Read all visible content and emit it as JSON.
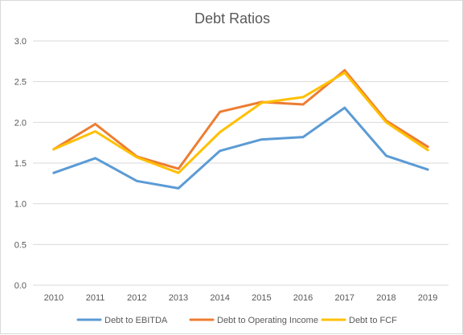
{
  "chart_data": {
    "type": "line",
    "title": "Debt Ratios",
    "xlabel": "",
    "ylabel": "",
    "categories": [
      "2010",
      "2011",
      "2012",
      "2013",
      "2014",
      "2015",
      "2016",
      "2017",
      "2018",
      "2019"
    ],
    "y_ticks": [
      "0.0",
      "0.5",
      "1.0",
      "1.5",
      "2.0",
      "2.5",
      "3.0"
    ],
    "ylim": [
      0,
      3.0
    ],
    "grid": true,
    "legend_position": "bottom",
    "series": [
      {
        "name": "Debt to EBITDA",
        "color": "#5B9BD5",
        "values": [
          1.38,
          1.56,
          1.28,
          1.19,
          1.65,
          1.79,
          1.82,
          2.18,
          1.59,
          1.42
        ]
      },
      {
        "name": "Debt to Operating Income",
        "color": "#ED7D31",
        "values": [
          1.67,
          1.98,
          1.58,
          1.43,
          2.13,
          2.25,
          2.22,
          2.64,
          2.02,
          1.7
        ]
      },
      {
        "name": "Debt to FCF",
        "color": "#FFC000",
        "values": [
          1.67,
          1.89,
          1.57,
          1.38,
          1.88,
          2.24,
          2.31,
          2.61,
          2.0,
          1.66
        ]
      }
    ]
  }
}
